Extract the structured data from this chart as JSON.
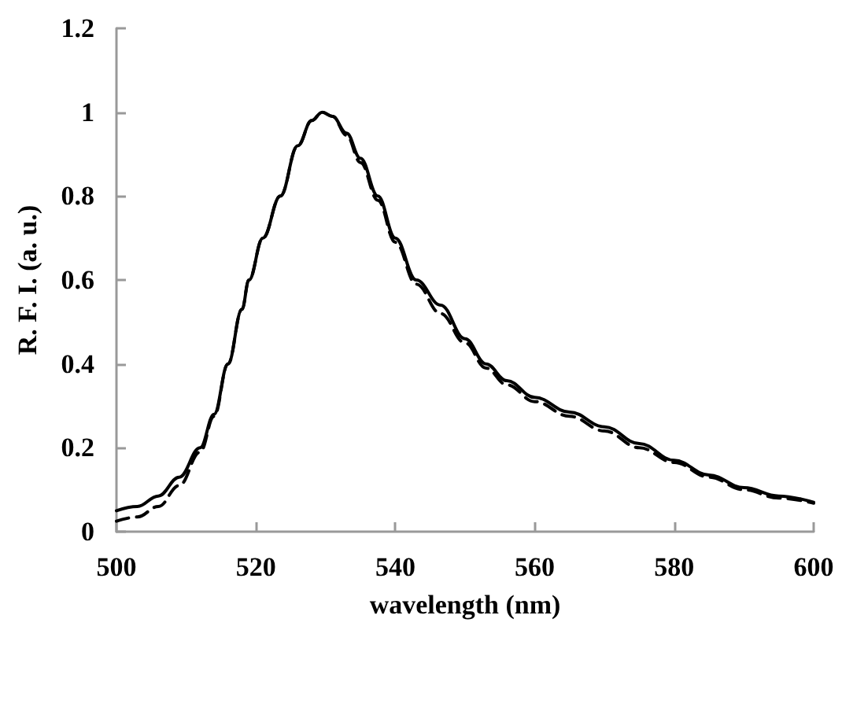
{
  "chart_data": {
    "type": "line",
    "xlabel": "wavelength (nm)",
    "ylabel": "R. F. I. (a. u.)",
    "xlim": [
      500,
      600
    ],
    "xticks": [
      500,
      520,
      540,
      560,
      580,
      600
    ],
    "ylim": [
      0,
      1.2
    ],
    "yticks": [
      0,
      0.2,
      0.4,
      0.6,
      0.8,
      1,
      1.2
    ],
    "marker": "none",
    "series": [
      {
        "color": "#000000",
        "line_style": "solid",
        "x": [
          500,
          503,
          506,
          509,
          512,
          514,
          516,
          518,
          519,
          521,
          523.5,
          526,
          528,
          529.5,
          531,
          533,
          535,
          537.5,
          540,
          543,
          546.5,
          550,
          553,
          556,
          560,
          565,
          570,
          575,
          580,
          585,
          590,
          595,
          600
        ],
        "values": [
          0.05,
          0.06,
          0.085,
          0.13,
          0.2,
          0.28,
          0.4,
          0.53,
          0.6,
          0.7,
          0.8,
          0.92,
          0.98,
          1.0,
          0.99,
          0.95,
          0.89,
          0.8,
          0.7,
          0.6,
          0.54,
          0.46,
          0.4,
          0.36,
          0.32,
          0.285,
          0.25,
          0.21,
          0.17,
          0.135,
          0.105,
          0.085,
          0.07
        ]
      },
      {
        "color": "#000000",
        "line_style": "dashed",
        "x": [
          500,
          503,
          506,
          509,
          512,
          514,
          516,
          518,
          519,
          521,
          523.5,
          526,
          528,
          529.5,
          531,
          533,
          535,
          537.5,
          540,
          543,
          546.5,
          550,
          553,
          556,
          560,
          565,
          570,
          575,
          580,
          585,
          590,
          595,
          600
        ],
        "values": [
          0.025,
          0.035,
          0.06,
          0.11,
          0.19,
          0.275,
          0.4,
          0.53,
          0.6,
          0.7,
          0.8,
          0.92,
          0.98,
          1.0,
          0.99,
          0.945,
          0.88,
          0.79,
          0.69,
          0.59,
          0.52,
          0.45,
          0.39,
          0.35,
          0.31,
          0.275,
          0.24,
          0.2,
          0.165,
          0.13,
          0.1,
          0.08,
          0.068
        ]
      }
    ]
  }
}
